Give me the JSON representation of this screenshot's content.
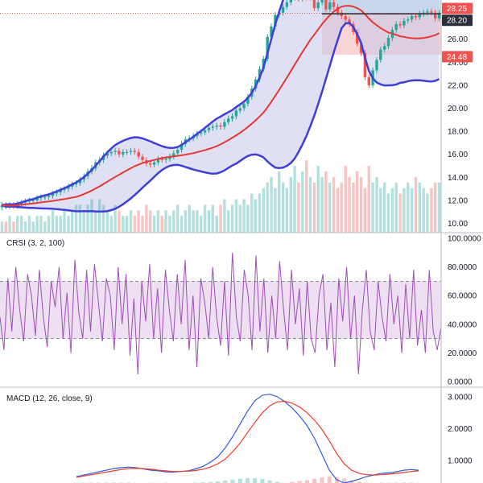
{
  "colors": {
    "up": "#26a69a",
    "down": "#ef5350",
    "bb_band": "#3f3fd8",
    "bb_basis": "#e53935",
    "bb_fill": "#c5c6ea",
    "crsi_line": "#9c4fb5",
    "crsi_fill": "#efdff3",
    "macd_line": "#2f5be0",
    "signal_line": "#ef3b2c",
    "axis_text": "#131722",
    "separator": "#b8bcc6",
    "price_badge_last": "#ef5350",
    "price_badge_mid": "#2a2e39",
    "price_badge_low": "#ef5350",
    "target_box": "#c9e9ec",
    "stop_box": "#fbd5d5"
  },
  "chart_data": [
    {
      "type": "candlestick",
      "pane": "price",
      "overlay": "Bollinger Bands",
      "ylim": [
        9.2,
        29.4
      ],
      "y_ticks": [
        10,
        12,
        14,
        16,
        18,
        20,
        22,
        24,
        26
      ],
      "y_tick_labels": [
        "10.00",
        "12.00",
        "14.00",
        "16.00",
        "18.00",
        "20.00",
        "22.00",
        "24.00",
        "26.00"
      ],
      "price_labels": [
        {
          "text": "28.25",
          "value": 28.25,
          "role": "last"
        },
        {
          "text": "28.20",
          "value": 28.2,
          "role": "mid"
        },
        {
          "text": "24.48",
          "value": 24.48,
          "role": "low"
        }
      ],
      "close": [
        11.6,
        11.5,
        11.6,
        11.5,
        11.7,
        11.8,
        11.9,
        12.0,
        12.0,
        12.2,
        12.3,
        12.3,
        12.4,
        12.6,
        12.7,
        12.9,
        13.0,
        13.2,
        13.4,
        13.5,
        13.8,
        14.1,
        14.5,
        14.8,
        15.3,
        15.5,
        15.9,
        16.1,
        16.2,
        16.3,
        16.0,
        16.2,
        16.2,
        16.3,
        16.2,
        15.8,
        15.5,
        15.2,
        15.1,
        15.3,
        15.6,
        15.5,
        15.6,
        15.8,
        16.1,
        16.4,
        16.9,
        17.3,
        17.4,
        17.6,
        17.8,
        17.9,
        18.1,
        18.3,
        18.4,
        18.5,
        18.4,
        18.8,
        19.1,
        19.3,
        19.8,
        20.0,
        20.4,
        21.0,
        21.7,
        22.5,
        23.4,
        24.3,
        26.2,
        27.1,
        28.1,
        28.3,
        28.8,
        29.2,
        29.6,
        29.8,
        29.5,
        29.8,
        29.6,
        29.8,
        28.7,
        29.2,
        29.8,
        28.6,
        29.2,
        28.8,
        28.3,
        28.0,
        27.7,
        27.3,
        26.6,
        25.6,
        24.8,
        22.7,
        22.0,
        23.3,
        24.2,
        25.1,
        25.4,
        26.1,
        26.8,
        27.3,
        27.2,
        27.6,
        27.7,
        28.0,
        27.9,
        28.2,
        28.3,
        28.4,
        28.3,
        27.8,
        28.3
      ],
      "open": [
        11.4,
        11.6,
        11.5,
        11.6,
        11.5,
        11.7,
        11.8,
        11.9,
        12.0,
        12.0,
        12.2,
        12.3,
        12.3,
        12.4,
        12.6,
        12.7,
        12.9,
        13.0,
        13.2,
        13.4,
        13.5,
        13.8,
        14.1,
        14.5,
        14.8,
        15.3,
        15.5,
        15.9,
        16.1,
        16.2,
        16.3,
        16.0,
        16.2,
        16.2,
        16.3,
        16.2,
        15.8,
        15.5,
        15.2,
        15.1,
        15.3,
        15.6,
        15.5,
        15.6,
        15.8,
        16.1,
        16.4,
        16.9,
        17.3,
        17.4,
        17.6,
        17.8,
        17.9,
        18.1,
        18.3,
        18.4,
        18.5,
        18.4,
        18.8,
        19.1,
        19.3,
        19.8,
        20.0,
        20.4,
        21.0,
        21.7,
        22.5,
        23.4,
        24.3,
        26.2,
        27.1,
        28.1,
        28.3,
        28.8,
        29.2,
        29.6,
        29.8,
        29.5,
        29.8,
        29.6,
        29.8,
        28.7,
        29.2,
        29.8,
        28.6,
        29.2,
        28.8,
        28.3,
        28.0,
        27.7,
        27.3,
        26.6,
        25.6,
        24.8,
        22.7,
        22.0,
        23.3,
        24.2,
        25.1,
        25.4,
        26.1,
        26.8,
        27.3,
        27.2,
        27.6,
        27.7,
        28.0,
        27.9,
        28.2,
        28.3,
        28.4,
        28.3,
        27.8
      ],
      "volume": [
        2,
        2,
        3,
        2,
        3,
        3,
        2,
        3,
        2,
        3,
        3,
        2,
        3,
        4,
        3,
        3,
        4,
        3,
        4,
        5,
        5,
        4,
        5,
        6,
        4,
        6,
        5,
        4,
        3,
        5,
        4,
        3,
        3,
        4,
        3,
        4,
        3,
        5,
        4,
        3,
        4,
        3,
        4,
        3,
        4,
        5,
        3,
        4,
        5,
        4,
        4,
        3,
        5,
        4,
        5,
        3,
        5,
        6,
        4,
        5,
        6,
        5,
        6,
        5,
        7,
        6,
        7,
        8,
        9,
        10,
        8,
        11,
        9,
        8,
        10,
        12,
        9,
        11,
        13,
        10,
        9,
        12,
        10,
        11,
        9,
        10,
        8,
        9,
        12,
        10,
        9,
        11,
        10,
        8,
        12,
        9,
        10,
        8,
        9,
        7,
        8,
        9,
        7,
        8,
        9,
        8,
        10,
        9,
        8,
        7,
        8,
        9,
        9
      ]
    },
    {
      "type": "line",
      "pane": "oscillator",
      "title": "CRSI (3, 2, 100)",
      "ylim": [
        -4,
        104
      ],
      "y_ticks": [
        0,
        20,
        40,
        60,
        80,
        100
      ],
      "y_tick_labels": [
        "0.0000",
        "20.0000",
        "40.0000",
        "60.0000",
        "80.0000",
        "100.0000"
      ],
      "band": [
        30,
        70
      ],
      "values": [
        45,
        22,
        72,
        35,
        80,
        50,
        28,
        75,
        60,
        32,
        78,
        45,
        24,
        70,
        52,
        80,
        30,
        62,
        20,
        85,
        48,
        30,
        78,
        35,
        82,
        55,
        28,
        72,
        60,
        22,
        80,
        40,
        75,
        18,
        58,
        5,
        70,
        42,
        82,
        30,
        65,
        20,
        78,
        50,
        28,
        75,
        40,
        85,
        22,
        60,
        10,
        72,
        55,
        30,
        80,
        45,
        25,
        70,
        18,
        90,
        45,
        28,
        78,
        60,
        22,
        88,
        35,
        72,
        20,
        60,
        30,
        84,
        50,
        22,
        78,
        40,
        65,
        18,
        70,
        30,
        20,
        60,
        75,
        22,
        55,
        10,
        72,
        42,
        80,
        30,
        60,
        5,
        50,
        78,
        35,
        22,
        70,
        45,
        28,
        75,
        40,
        60,
        20,
        68,
        30,
        78,
        25,
        50,
        20,
        78,
        35,
        22,
        38
      ]
    },
    {
      "type": "line",
      "pane": "oscillator",
      "title": "MACD (12, 26, close, 9)",
      "ylim": [
        0.3,
        3.3
      ],
      "y_ticks": [
        1,
        2,
        3
      ],
      "y_tick_labels": [
        "1.0000",
        "2.0000",
        "3.0000"
      ],
      "series": [
        {
          "values": [
            0.5,
            0.55,
            0.6,
            0.65,
            0.7,
            0.75,
            0.78,
            0.8,
            0.78,
            0.74,
            0.7,
            0.68,
            0.65,
            0.64,
            0.66,
            0.68,
            0.74,
            0.82,
            0.95,
            1.12,
            1.4,
            1.75,
            2.15,
            2.55,
            2.88,
            3.05,
            3.08,
            3.0,
            2.85,
            2.65,
            2.4,
            2.1,
            1.7,
            1.2,
            0.7,
            0.4,
            0.3,
            0.35,
            0.42,
            0.5,
            0.55,
            0.6,
            0.62,
            0.65,
            0.7,
            0.72,
            0.7
          ]
        },
        {
          "values": [
            0.48,
            0.52,
            0.56,
            0.6,
            0.64,
            0.68,
            0.72,
            0.75,
            0.76,
            0.75,
            0.73,
            0.7,
            0.68,
            0.66,
            0.66,
            0.67,
            0.69,
            0.73,
            0.8,
            0.9,
            1.05,
            1.28,
            1.55,
            1.88,
            2.2,
            2.5,
            2.72,
            2.84,
            2.86,
            2.8,
            2.68,
            2.5,
            2.27,
            1.98,
            1.62,
            1.22,
            0.9,
            0.7,
            0.6,
            0.56,
            0.55,
            0.56,
            0.58,
            0.6,
            0.63,
            0.66,
            0.68
          ]
        }
      ],
      "histogram": [
        0.02,
        0.03,
        0.04,
        0.05,
        0.06,
        0.07,
        0.06,
        0.05,
        0.02,
        -0.01,
        -0.03,
        -0.02,
        -0.03,
        -0.02,
        0.0,
        0.01,
        0.05,
        0.09,
        0.15,
        0.22,
        0.35,
        0.47,
        0.6,
        0.67,
        0.68,
        0.55,
        0.36,
        0.16,
        -0.01,
        -0.15,
        -0.28,
        -0.4,
        -0.57,
        -0.78,
        -0.92,
        -0.82,
        -0.6,
        -0.35,
        -0.18,
        -0.06,
        0.0,
        0.04,
        0.04,
        0.05,
        0.07,
        0.06,
        0.02
      ]
    }
  ]
}
